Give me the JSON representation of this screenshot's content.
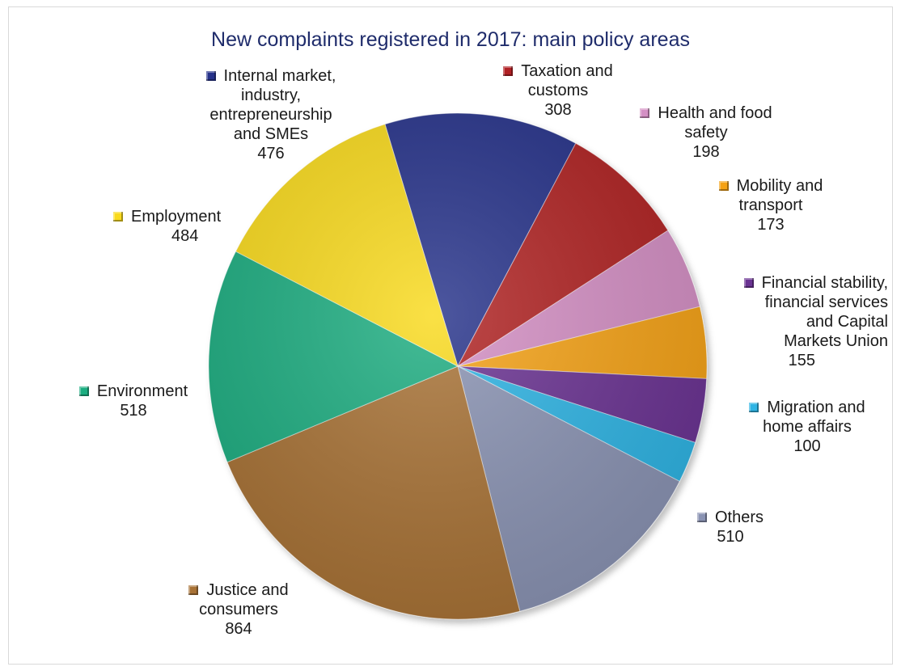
{
  "chart_data": {
    "type": "pie",
    "title": "New complaints registered in 2017: main policy areas",
    "slices": [
      {
        "id": "internal-market",
        "lines": [
          "Internal market,",
          "industry,",
          "entrepreneurship",
          "and SMEs"
        ],
        "value": 476,
        "color": "#26328a"
      },
      {
        "id": "taxation",
        "lines": [
          "Taxation and",
          "customs"
        ],
        "value": 308,
        "color": "#b02024"
      },
      {
        "id": "health",
        "lines": [
          "Health and food",
          "safety"
        ],
        "value": 198,
        "color": "#d48fc4"
      },
      {
        "id": "mobility",
        "lines": [
          "Mobility and",
          "transport"
        ],
        "value": 173,
        "color": "#f5a214"
      },
      {
        "id": "financial",
        "lines": [
          "Financial stability,",
          "financial services",
          "and Capital",
          "Markets Union"
        ],
        "value": 155,
        "color": "#6a3392"
      },
      {
        "id": "migration",
        "lines": [
          "Migration and",
          "home affairs"
        ],
        "value": 100,
        "color": "#2fb4e4"
      },
      {
        "id": "others",
        "lines": [
          "Others"
        ],
        "value": 510,
        "color": "#8a93b3"
      },
      {
        "id": "justice",
        "lines": [
          "Justice and",
          "consumers"
        ],
        "value": 864,
        "color": "#a87236"
      },
      {
        "id": "environment",
        "lines": [
          "Environment"
        ],
        "value": 518,
        "color": "#1bad80"
      },
      {
        "id": "employment",
        "lines": [
          "Employment"
        ],
        "value": 484,
        "color": "#f9da1c"
      }
    ]
  }
}
